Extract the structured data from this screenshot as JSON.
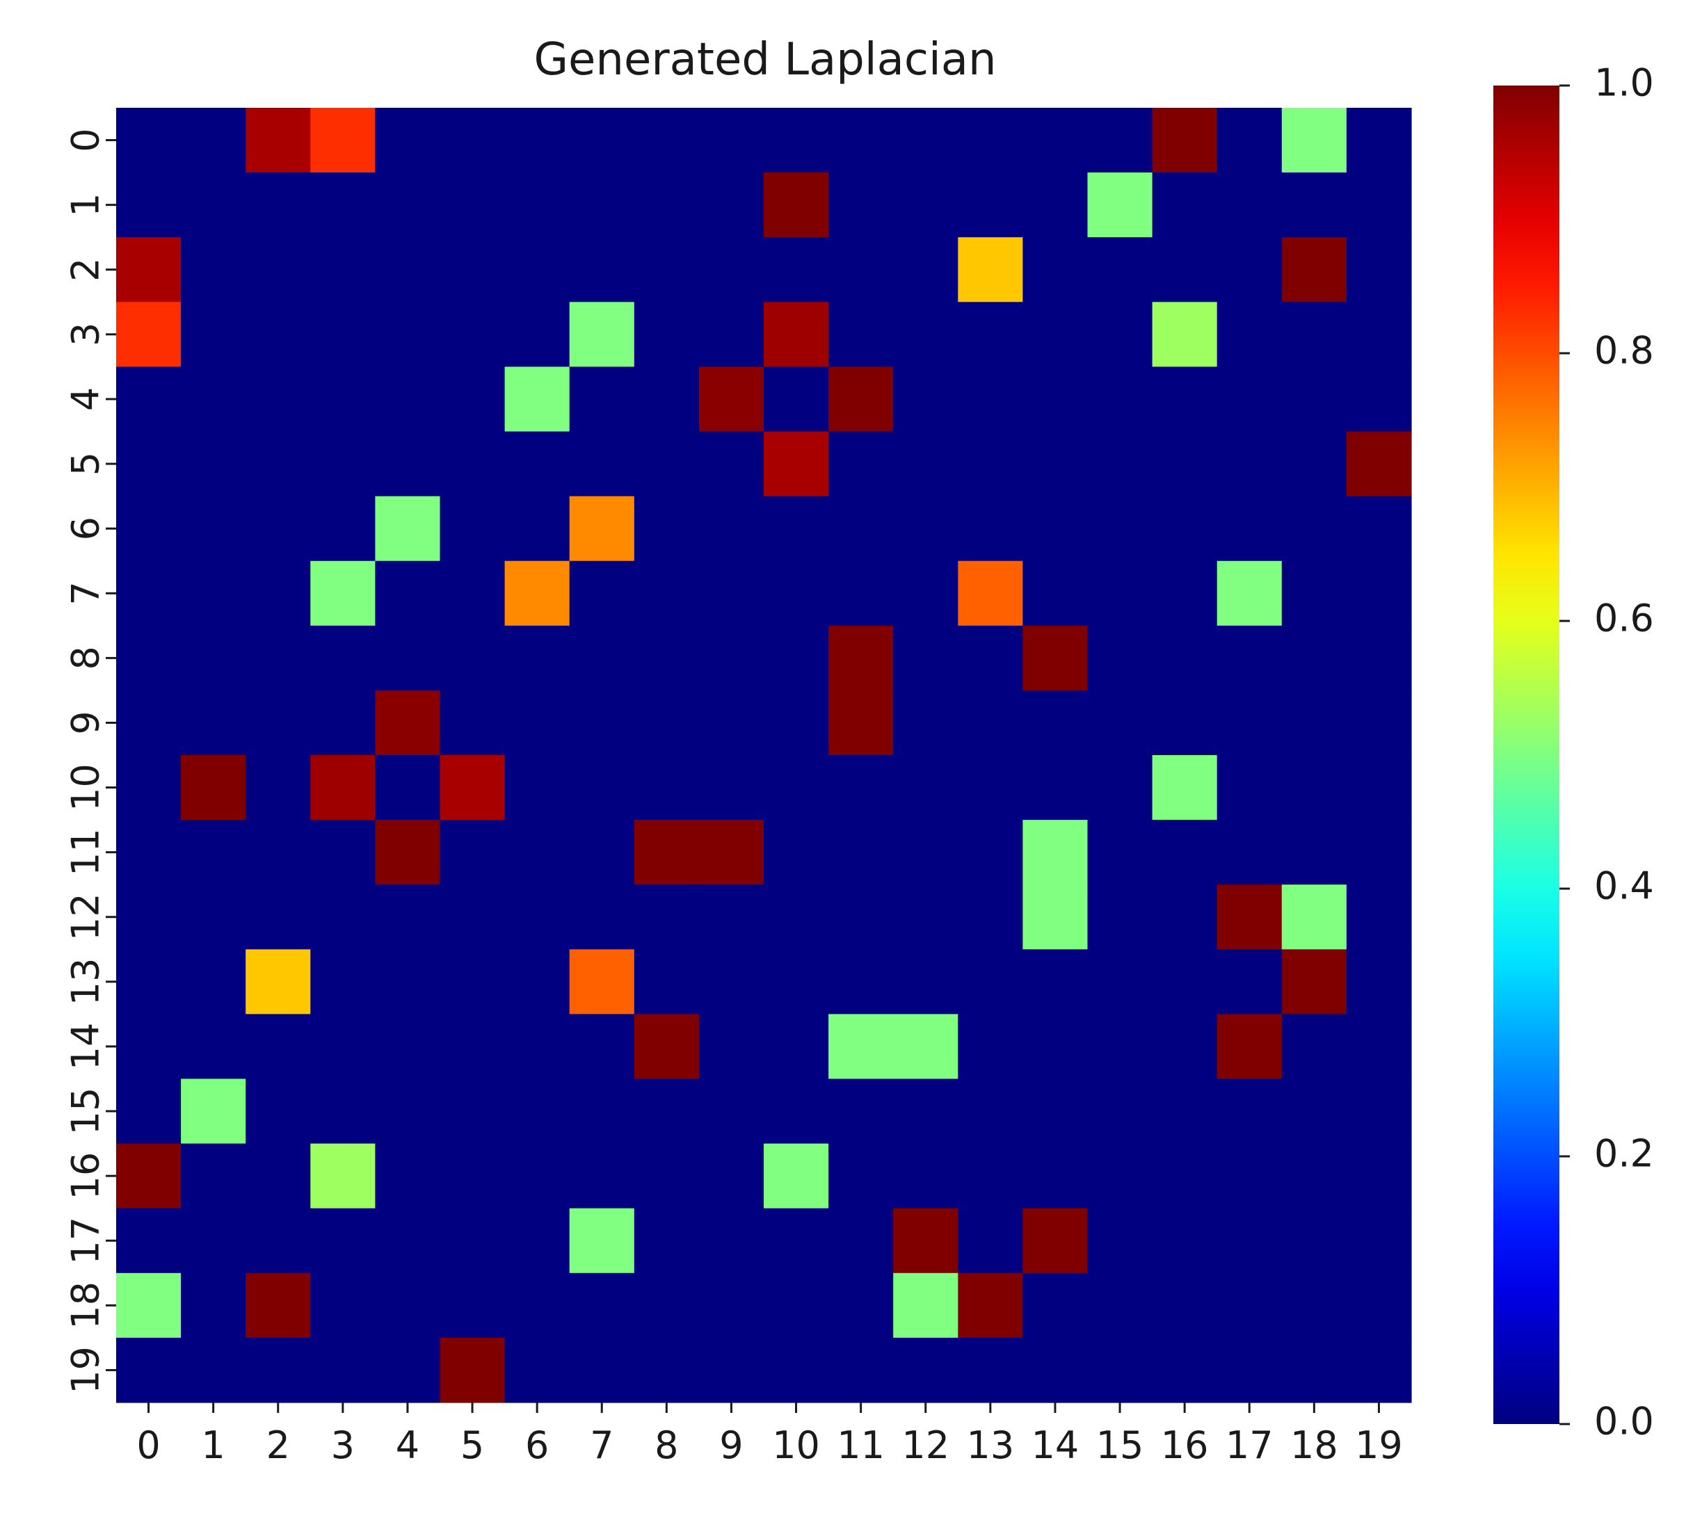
{
  "chart_data": {
    "type": "heatmap",
    "title": "Generated Laplacian",
    "xlabel": "",
    "ylabel": "",
    "x_tick_labels": [
      "0",
      "1",
      "2",
      "3",
      "4",
      "5",
      "6",
      "7",
      "8",
      "9",
      "10",
      "11",
      "12",
      "13",
      "14",
      "15",
      "16",
      "17",
      "18",
      "19"
    ],
    "y_tick_labels": [
      "0",
      "1",
      "2",
      "3",
      "4",
      "5",
      "6",
      "7",
      "8",
      "9",
      "10",
      "11",
      "12",
      "13",
      "14",
      "15",
      "16",
      "17",
      "18",
      "19"
    ],
    "colormap": "jet",
    "colorbar": {
      "vmin": 0.0,
      "vmax": 1.0,
      "tick_values": [
        0.0,
        0.2,
        0.4,
        0.6,
        0.8,
        1.0
      ],
      "tick_labels": [
        "0.0",
        "0.2",
        "0.4",
        "0.6",
        "0.8",
        "1.0"
      ]
    },
    "values": [
      [
        0,
        0,
        0.96,
        0.83,
        0,
        0,
        0,
        0,
        0,
        0,
        0,
        0,
        0,
        0,
        0,
        0,
        1,
        0,
        0.5,
        0
      ],
      [
        0,
        0,
        0,
        0,
        0,
        0,
        0,
        0,
        0,
        0,
        1,
        0,
        0,
        0,
        0,
        0.5,
        0,
        0,
        0,
        0
      ],
      [
        0.96,
        0,
        0,
        0,
        0,
        0,
        0,
        0,
        0,
        0,
        0,
        0,
        0,
        0.68,
        0,
        0,
        0,
        0,
        1,
        0
      ],
      [
        0.83,
        0,
        0,
        0,
        0,
        0,
        0,
        0.5,
        0,
        0,
        0.97,
        0,
        0,
        0,
        0,
        0,
        0.53,
        0,
        0,
        0
      ],
      [
        0,
        0,
        0,
        0,
        0,
        0,
        0.5,
        0,
        0,
        0.99,
        0,
        1,
        0,
        0,
        0,
        0,
        0,
        0,
        0,
        0
      ],
      [
        0,
        0,
        0,
        0,
        0,
        0,
        0,
        0,
        0,
        0,
        0.96,
        0,
        0,
        0,
        0,
        0,
        0,
        0,
        0,
        1
      ],
      [
        0,
        0,
        0,
        0,
        0.5,
        0,
        0,
        0.74,
        0,
        0,
        0,
        0,
        0,
        0,
        0,
        0,
        0,
        0,
        0,
        0
      ],
      [
        0,
        0,
        0,
        0.5,
        0,
        0,
        0.74,
        0,
        0,
        0,
        0,
        0,
        0,
        0.78,
        0,
        0,
        0,
        0.5,
        0,
        0
      ],
      [
        0,
        0,
        0,
        0,
        0,
        0,
        0,
        0,
        0,
        0,
        0,
        1,
        0,
        0,
        1,
        0,
        0,
        0,
        0,
        0
      ],
      [
        0,
        0,
        0,
        0,
        0.99,
        0,
        0,
        0,
        0,
        0,
        0,
        1,
        0,
        0,
        0,
        0,
        0,
        0,
        0,
        0
      ],
      [
        0,
        1,
        0,
        0.97,
        0,
        0.96,
        0,
        0,
        0,
        0,
        0,
        0,
        0,
        0,
        0,
        0,
        0.5,
        0,
        0,
        0
      ],
      [
        0,
        0,
        0,
        0,
        1,
        0,
        0,
        0,
        1,
        1,
        0,
        0,
        0,
        0,
        0.5,
        0,
        0,
        0,
        0,
        0
      ],
      [
        0,
        0,
        0,
        0,
        0,
        0,
        0,
        0,
        0,
        0,
        0,
        0,
        0,
        0,
        0.5,
        0,
        0,
        1,
        0.5,
        0
      ],
      [
        0,
        0,
        0.68,
        0,
        0,
        0,
        0,
        0.78,
        0,
        0,
        0,
        0,
        0,
        0,
        0,
        0,
        0,
        0,
        1,
        0
      ],
      [
        0,
        0,
        0,
        0,
        0,
        0,
        0,
        0,
        1,
        0,
        0,
        0.5,
        0.5,
        0,
        0,
        0,
        0,
        1,
        0,
        0
      ],
      [
        0,
        0.5,
        0,
        0,
        0,
        0,
        0,
        0,
        0,
        0,
        0,
        0,
        0,
        0,
        0,
        0,
        0,
        0,
        0,
        0
      ],
      [
        1,
        0,
        0,
        0.53,
        0,
        0,
        0,
        0,
        0,
        0,
        0.5,
        0,
        0,
        0,
        0,
        0,
        0,
        0,
        0,
        0
      ],
      [
        0,
        0,
        0,
        0,
        0,
        0,
        0,
        0.5,
        0,
        0,
        0,
        0,
        1,
        0,
        1,
        0,
        0,
        0,
        0,
        0
      ],
      [
        0.5,
        0,
        1,
        0,
        0,
        0,
        0,
        0,
        0,
        0,
        0,
        0,
        0.5,
        1,
        0,
        0,
        0,
        0,
        0,
        0
      ],
      [
        0,
        0,
        0,
        0,
        0,
        1,
        0,
        0,
        0,
        0,
        0,
        0,
        0,
        0,
        0,
        0,
        0,
        0,
        0,
        0
      ]
    ]
  }
}
